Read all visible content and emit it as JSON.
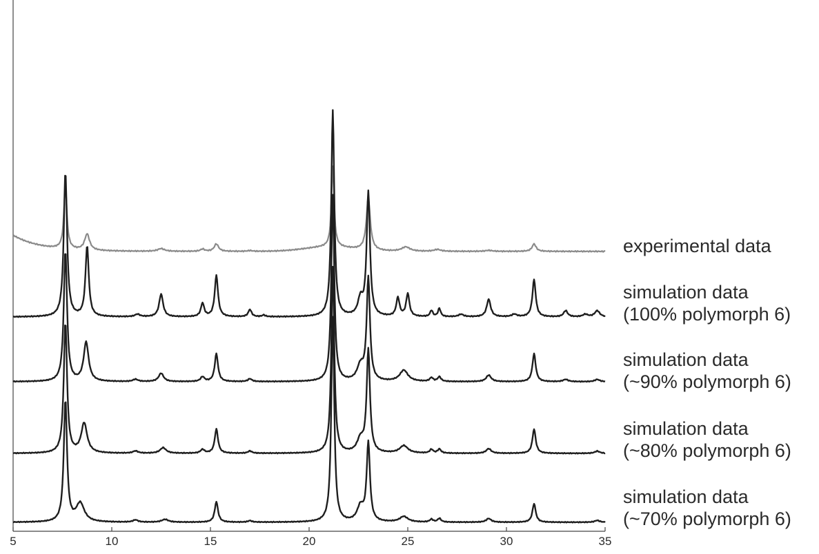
{
  "chart_data": {
    "type": "line",
    "title": "",
    "xlabel": "",
    "ylabel": "",
    "xlim": [
      5,
      35
    ],
    "x_ticks": [
      5,
      10,
      15,
      20,
      25,
      30,
      35
    ],
    "x_tick_labels": [
      "5",
      "10",
      "15",
      "20",
      "25",
      "30",
      "35"
    ],
    "y_ticks_visible": false,
    "grid": false,
    "stacked_offsets": true,
    "colors": {
      "experimental": "#8a8a8a",
      "simulation": "#1e1e1e",
      "axis": "#444444"
    },
    "series": [
      {
        "label_lines": [
          "experimental data"
        ],
        "baseline": 0.62,
        "background": {
          "start": 1.3,
          "decay": 1.4,
          "hump_center": 21.0,
          "hump_height": 0.35,
          "hump_width": 1.2
        },
        "peaks": [
          [
            7.65,
            5.1,
            0.09
          ],
          [
            8.75,
            1.3,
            0.15
          ],
          [
            12.5,
            0.22,
            0.2
          ],
          [
            14.6,
            0.18,
            0.12
          ],
          [
            15.3,
            0.6,
            0.13
          ],
          [
            17.0,
            0.06,
            0.15
          ],
          [
            21.2,
            6.5,
            0.08
          ],
          [
            23.0,
            4.2,
            0.12
          ],
          [
            24.9,
            0.35,
            0.25
          ],
          [
            26.5,
            0.15,
            0.2
          ],
          [
            29.1,
            0.08,
            0.2
          ],
          [
            31.4,
            0.6,
            0.12
          ]
        ]
      },
      {
        "label_lines": [
          "simulation data",
          "(100% polymorph 6)"
        ],
        "baseline": 0.0,
        "peaks": [
          [
            7.65,
            7.0,
            0.1
          ],
          [
            8.75,
            3.4,
            0.1
          ],
          [
            11.3,
            0.12,
            0.15
          ],
          [
            12.5,
            1.1,
            0.12
          ],
          [
            14.6,
            0.65,
            0.1
          ],
          [
            15.3,
            2.0,
            0.1
          ],
          [
            17.0,
            0.35,
            0.1
          ],
          [
            17.7,
            0.08,
            0.1
          ],
          [
            21.2,
            10.0,
            0.09
          ],
          [
            22.6,
            0.8,
            0.15
          ],
          [
            23.0,
            6.0,
            0.1
          ],
          [
            24.5,
            0.9,
            0.1
          ],
          [
            25.0,
            1.1,
            0.1
          ],
          [
            26.2,
            0.3,
            0.08
          ],
          [
            26.6,
            0.4,
            0.08
          ],
          [
            27.7,
            0.12,
            0.15
          ],
          [
            29.1,
            0.85,
            0.12
          ],
          [
            30.4,
            0.12,
            0.15
          ],
          [
            31.4,
            1.8,
            0.1
          ],
          [
            33.0,
            0.3,
            0.12
          ],
          [
            34.0,
            0.12,
            0.15
          ],
          [
            34.6,
            0.3,
            0.15
          ]
        ]
      },
      {
        "label_lines": [
          "simulation data",
          "(~90% polymorph 6)"
        ],
        "baseline": 0.0,
        "peaks": [
          [
            7.65,
            7.0,
            0.1
          ],
          [
            8.7,
            2.1,
            0.15
          ],
          [
            11.2,
            0.12,
            0.15
          ],
          [
            12.5,
            0.45,
            0.15
          ],
          [
            14.6,
            0.25,
            0.12
          ],
          [
            15.3,
            1.5,
            0.1
          ],
          [
            17.0,
            0.15,
            0.12
          ],
          [
            21.2,
            10.0,
            0.09
          ],
          [
            22.6,
            0.8,
            0.2
          ],
          [
            23.0,
            5.5,
            0.1
          ],
          [
            24.8,
            0.6,
            0.25
          ],
          [
            26.2,
            0.2,
            0.1
          ],
          [
            26.6,
            0.25,
            0.1
          ],
          [
            29.1,
            0.35,
            0.15
          ],
          [
            31.4,
            1.5,
            0.1
          ],
          [
            33.0,
            0.12,
            0.15
          ],
          [
            34.6,
            0.12,
            0.15
          ]
        ]
      },
      {
        "label_lines": [
          "simulation data",
          "(~80% polymorph 6)"
        ],
        "baseline": 0.0,
        "peaks": [
          [
            7.65,
            7.0,
            0.1
          ],
          [
            8.6,
            1.6,
            0.18
          ],
          [
            11.2,
            0.12,
            0.15
          ],
          [
            12.6,
            0.3,
            0.18
          ],
          [
            14.6,
            0.2,
            0.12
          ],
          [
            15.3,
            1.3,
            0.1
          ],
          [
            17.0,
            0.12,
            0.12
          ],
          [
            21.2,
            10.0,
            0.09
          ],
          [
            22.6,
            0.7,
            0.2
          ],
          [
            23.0,
            5.5,
            0.1
          ],
          [
            24.8,
            0.4,
            0.25
          ],
          [
            26.2,
            0.2,
            0.1
          ],
          [
            26.6,
            0.22,
            0.1
          ],
          [
            29.1,
            0.25,
            0.15
          ],
          [
            31.4,
            1.3,
            0.1
          ],
          [
            34.6,
            0.12,
            0.15
          ]
        ]
      },
      {
        "label_lines": [
          "simulation data",
          "(~70% polymorph 6)"
        ],
        "baseline": 0.0,
        "peaks": [
          [
            7.65,
            6.5,
            0.1
          ],
          [
            8.4,
            1.0,
            0.25
          ],
          [
            11.2,
            0.12,
            0.15
          ],
          [
            12.7,
            0.15,
            0.2
          ],
          [
            15.3,
            1.1,
            0.1
          ],
          [
            17.0,
            0.08,
            0.12
          ],
          [
            21.2,
            11.0,
            0.09
          ],
          [
            22.6,
            0.8,
            0.2
          ],
          [
            23.0,
            4.2,
            0.1
          ],
          [
            24.8,
            0.3,
            0.25
          ],
          [
            26.2,
            0.15,
            0.1
          ],
          [
            26.6,
            0.2,
            0.1
          ],
          [
            29.1,
            0.2,
            0.15
          ],
          [
            31.4,
            1.0,
            0.1
          ],
          [
            34.6,
            0.1,
            0.15
          ]
        ]
      }
    ]
  }
}
